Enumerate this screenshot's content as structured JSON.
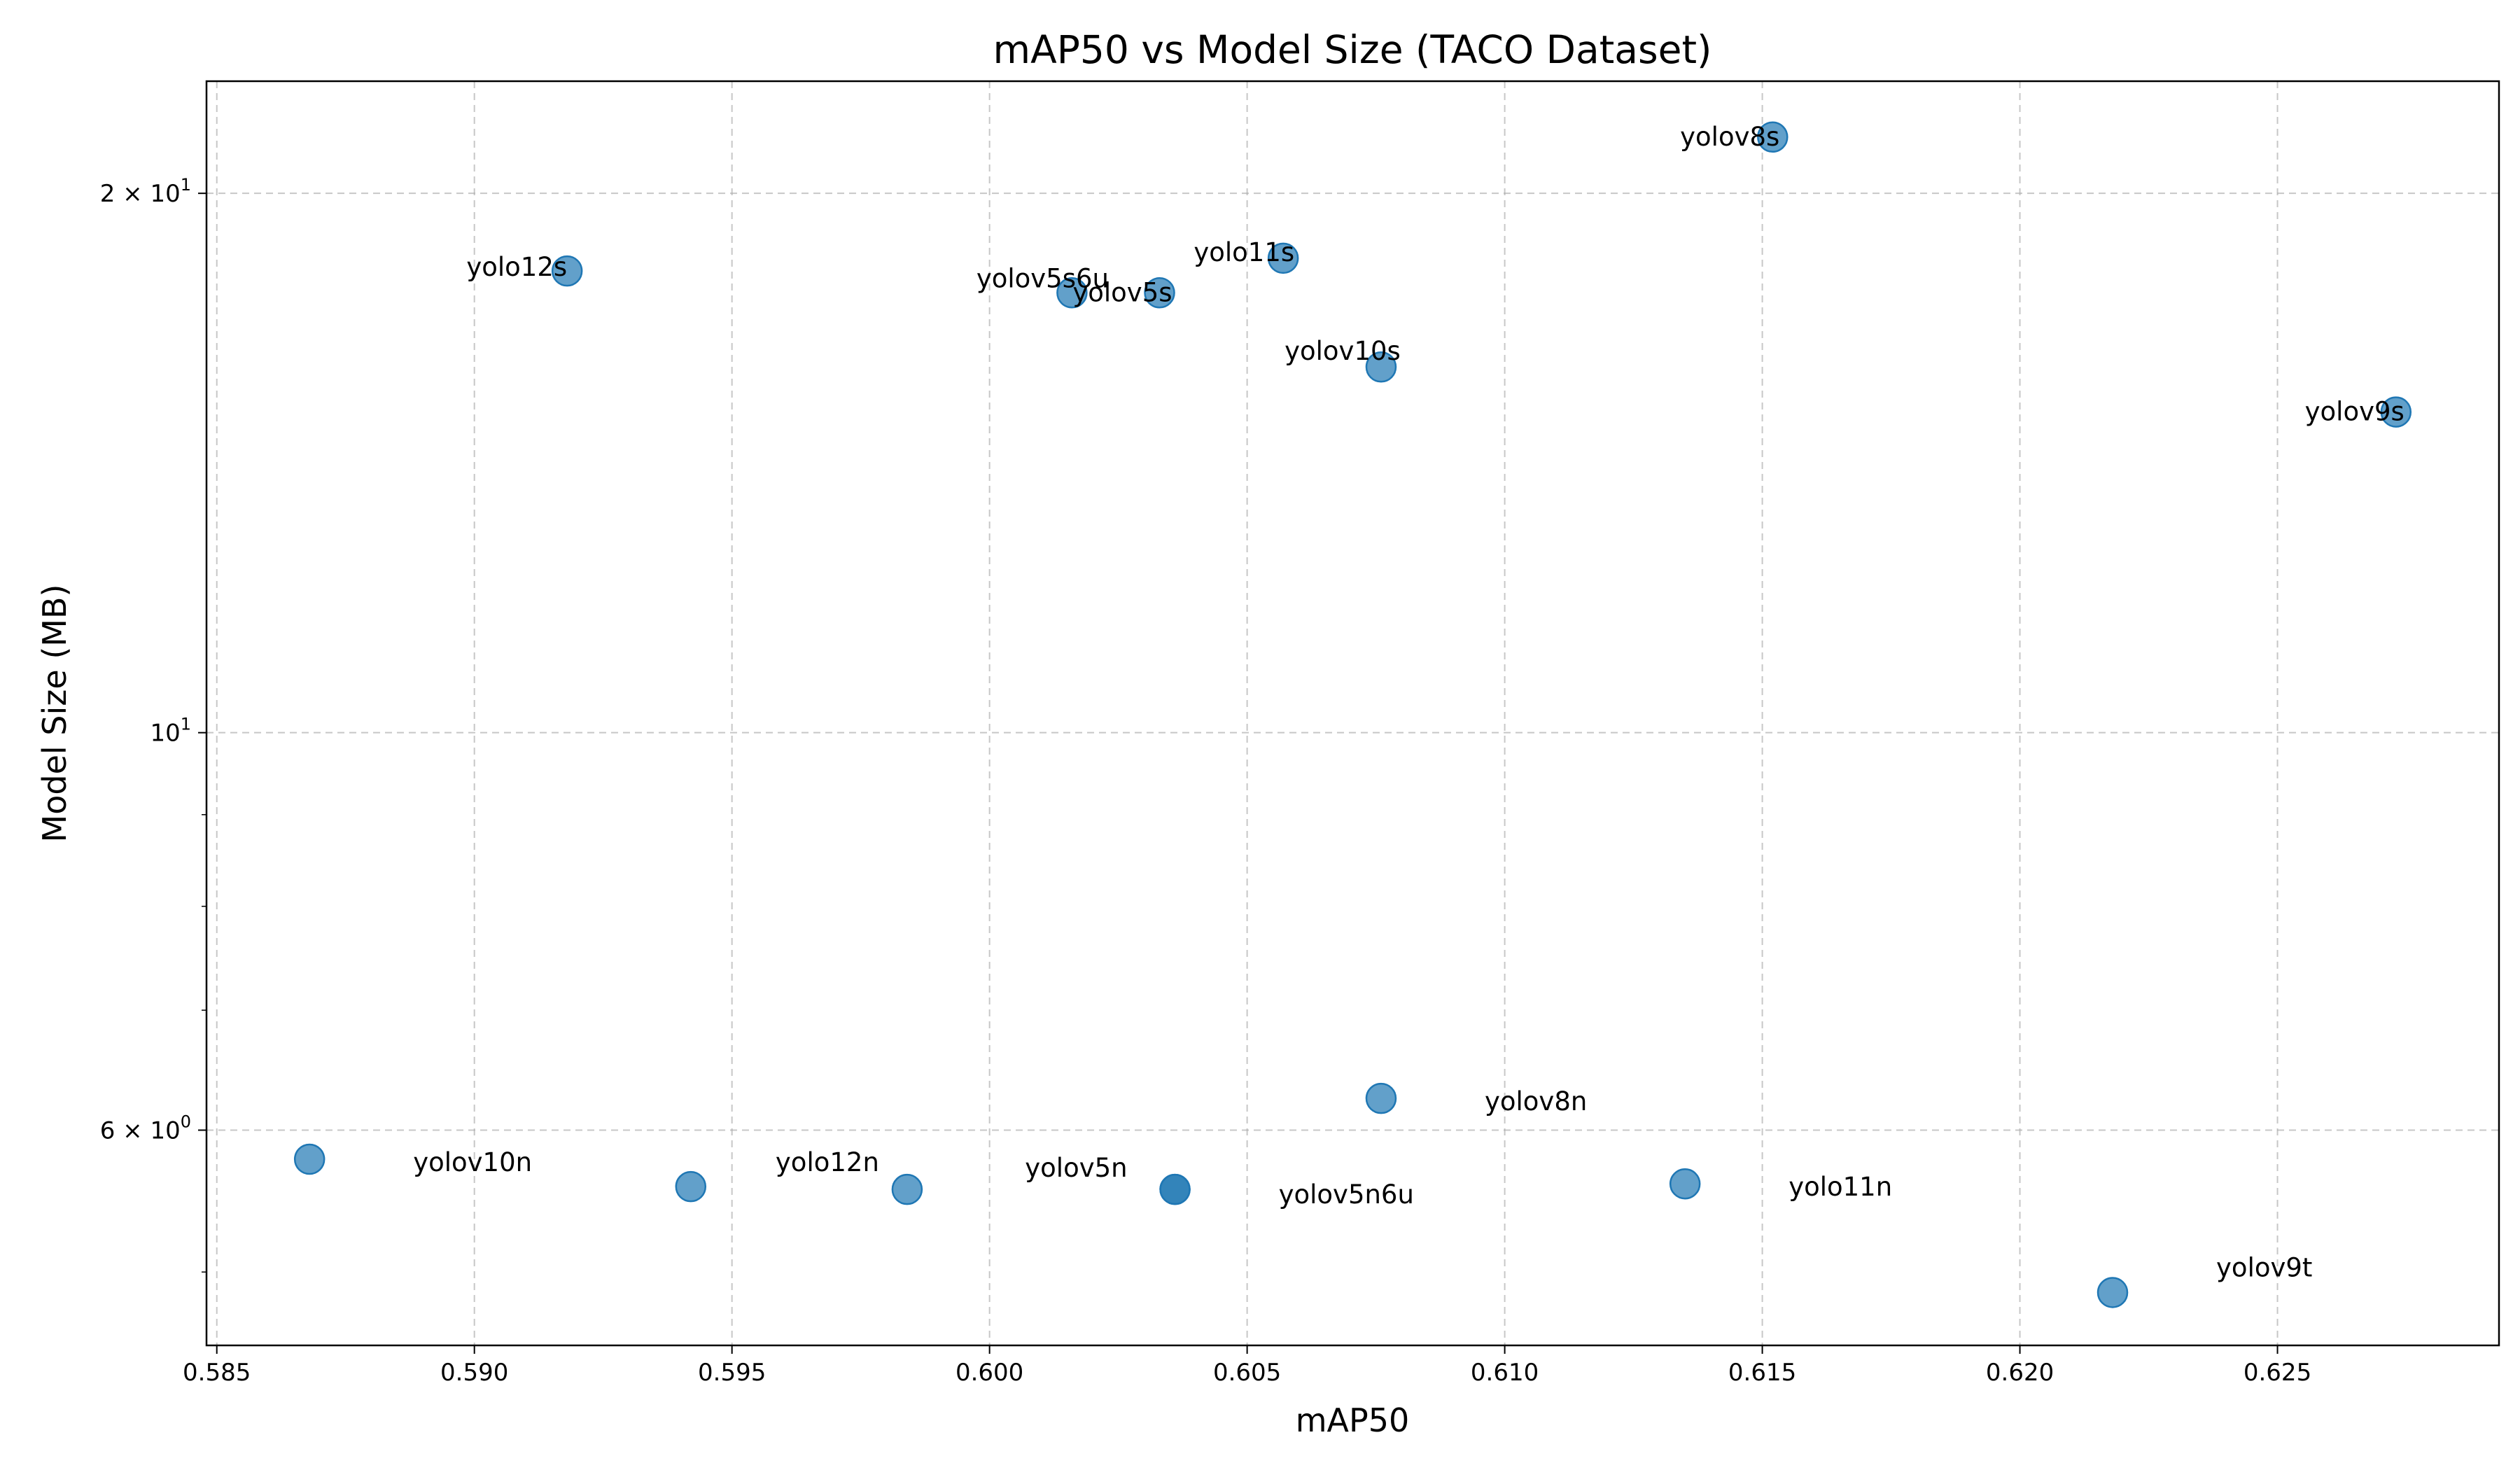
{
  "chart_data": {
    "type": "scatter",
    "title": "mAP50 vs Model Size (TACO Dataset)",
    "xlabel": "mAP50",
    "ylabel": "Model Size (MB)",
    "xlim": [
      0.5848,
      0.6293
    ],
    "ylim": [
      4.55,
      23.1
    ],
    "yscale": "log",
    "grid": true,
    "point_color": "#1f77b4",
    "x_ticks": [
      {
        "value": 0.585,
        "label": "0.585"
      },
      {
        "value": 0.59,
        "label": "0.590"
      },
      {
        "value": 0.595,
        "label": "0.595"
      },
      {
        "value": 0.6,
        "label": "0.600"
      },
      {
        "value": 0.605,
        "label": "0.605"
      },
      {
        "value": 0.61,
        "label": "0.610"
      },
      {
        "value": 0.615,
        "label": "0.615"
      },
      {
        "value": 0.62,
        "label": "0.620"
      },
      {
        "value": 0.625,
        "label": "0.625"
      }
    ],
    "y_ticks": [
      {
        "value": 6,
        "base": "6 × 10",
        "exp": "0"
      },
      {
        "value": 10,
        "base": "10",
        "exp": "1"
      },
      {
        "value": 20,
        "base": "2 × 10",
        "exp": "1"
      }
    ],
    "y_minor_ticks": [
      5,
      7,
      8,
      9
    ],
    "points": [
      {
        "name": "yolov8s",
        "x": 0.6152,
        "y": 21.5,
        "anchor": "end",
        "dx": 10,
        "dy": 0
      },
      {
        "name": "yolo12s",
        "x": 0.5918,
        "y": 18.1,
        "anchor": "end",
        "dx": 0,
        "dy": -5
      },
      {
        "name": "yolov5s6u",
        "x": 0.6016,
        "y": 17.6,
        "anchor": "middle",
        "dx": -42,
        "dy": -20
      },
      {
        "name": "yolov5s",
        "x": 0.6033,
        "y": 17.6,
        "anchor": "end",
        "dx": 18,
        "dy": 0
      },
      {
        "name": "yolo11s",
        "x": 0.6057,
        "y": 18.4,
        "anchor": "end",
        "dx": 16,
        "dy": -8
      },
      {
        "name": "yolov10s",
        "x": 0.6076,
        "y": 16.0,
        "anchor": "middle",
        "dx": -55,
        "dy": -22
      },
      {
        "name": "yolov9s",
        "x": 0.6273,
        "y": 15.1,
        "anchor": "end",
        "dx": 12,
        "dy": 0
      },
      {
        "name": "yolov8n",
        "x": 0.6076,
        "y": 6.25,
        "anchor": "start",
        "dx": 148,
        "dy": 5
      },
      {
        "name": "yolov10n",
        "x": 0.5868,
        "y": 5.78,
        "anchor": "start",
        "dx": 148,
        "dy": 5
      },
      {
        "name": "",
        "x": 0.5942,
        "y": 5.58,
        "anchor": "start",
        "dx": 0,
        "dy": 0
      },
      {
        "name": "yolo12n",
        "x": 0.5984,
        "y": 5.56,
        "anchor": "end",
        "dx": -40,
        "dy": -38
      },
      {
        "name": "yolov5n",
        "x": 0.6036,
        "y": 5.56,
        "anchor": "end",
        "dx": -68,
        "dy": -30
      },
      {
        "name": "yolov5n6u",
        "x": 0.6036,
        "y": 5.56,
        "anchor": "start",
        "dx": 148,
        "dy": 8
      },
      {
        "name": "yolo11n",
        "x": 0.6135,
        "y": 5.6,
        "anchor": "start",
        "dx": 148,
        "dy": 5
      },
      {
        "name": "yolov9t",
        "x": 0.6218,
        "y": 4.87,
        "anchor": "start",
        "dx": 148,
        "dy": -35
      }
    ]
  }
}
